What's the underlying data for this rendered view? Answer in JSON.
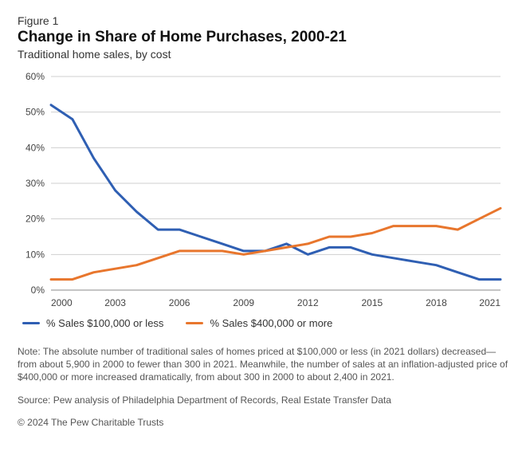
{
  "figure_label": "Figure 1",
  "title": "Change in Share of Home Purchases, 2000-21",
  "subtitle": "Traditional home sales, by cost",
  "chart": {
    "type": "line",
    "x_min": 2000,
    "x_max": 2021,
    "x_ticks": [
      2000,
      2003,
      2006,
      2009,
      2012,
      2015,
      2018,
      2021
    ],
    "y_min": 0,
    "y_max": 60,
    "y_ticks": [
      0,
      10,
      20,
      30,
      40,
      50,
      60
    ],
    "y_tick_suffix": "%",
    "grid_color": "#cfcfcf",
    "axis_color": "#888888",
    "background_color": "#ffffff",
    "line_width": 3,
    "axis_fontsize": 12,
    "series": [
      {
        "name": "% Sales $100,000 or less",
        "color": "#2f5fb3",
        "years": [
          2000,
          2001,
          2002,
          2003,
          2004,
          2005,
          2006,
          2007,
          2008,
          2009,
          2010,
          2011,
          2012,
          2013,
          2014,
          2015,
          2016,
          2017,
          2018,
          2019,
          2020,
          2021
        ],
        "values": [
          52,
          48,
          37,
          28,
          22,
          17,
          17,
          15,
          13,
          11,
          11,
          13,
          10,
          12,
          12,
          10,
          9,
          8,
          7,
          5,
          3,
          3
        ]
      },
      {
        "name": "% Sales $400,000 or more",
        "color": "#e8762d",
        "years": [
          2000,
          2001,
          2002,
          2003,
          2004,
          2005,
          2006,
          2007,
          2008,
          2009,
          2010,
          2011,
          2012,
          2013,
          2014,
          2015,
          2016,
          2017,
          2018,
          2019,
          2020,
          2021
        ],
        "values": [
          3,
          3,
          5,
          6,
          7,
          9,
          11,
          11,
          11,
          10,
          11,
          12,
          13,
          15,
          15,
          16,
          18,
          18,
          18,
          17,
          20,
          23
        ]
      }
    ]
  },
  "legend": [
    {
      "label": "% Sales $100,000 or less",
      "color": "#2f5fb3"
    },
    {
      "label": "% Sales $400,000 or more",
      "color": "#e8762d"
    }
  ],
  "note": "Note: The absolute number of traditional sales of homes priced at $100,000 or less (in 2021 dollars) decreased—from about 5,900 in 2000 to fewer than 300 in 2021. Meanwhile, the number of sales at an inflation-adjusted price of $400,000 or more increased dramatically, from about 300 in 2000 to about 2,400 in 2021.",
  "source": "Source: Pew analysis of Philadelphia Department of Records, Real Estate Transfer Data",
  "copyright": "© 2024 The Pew Charitable Trusts"
}
